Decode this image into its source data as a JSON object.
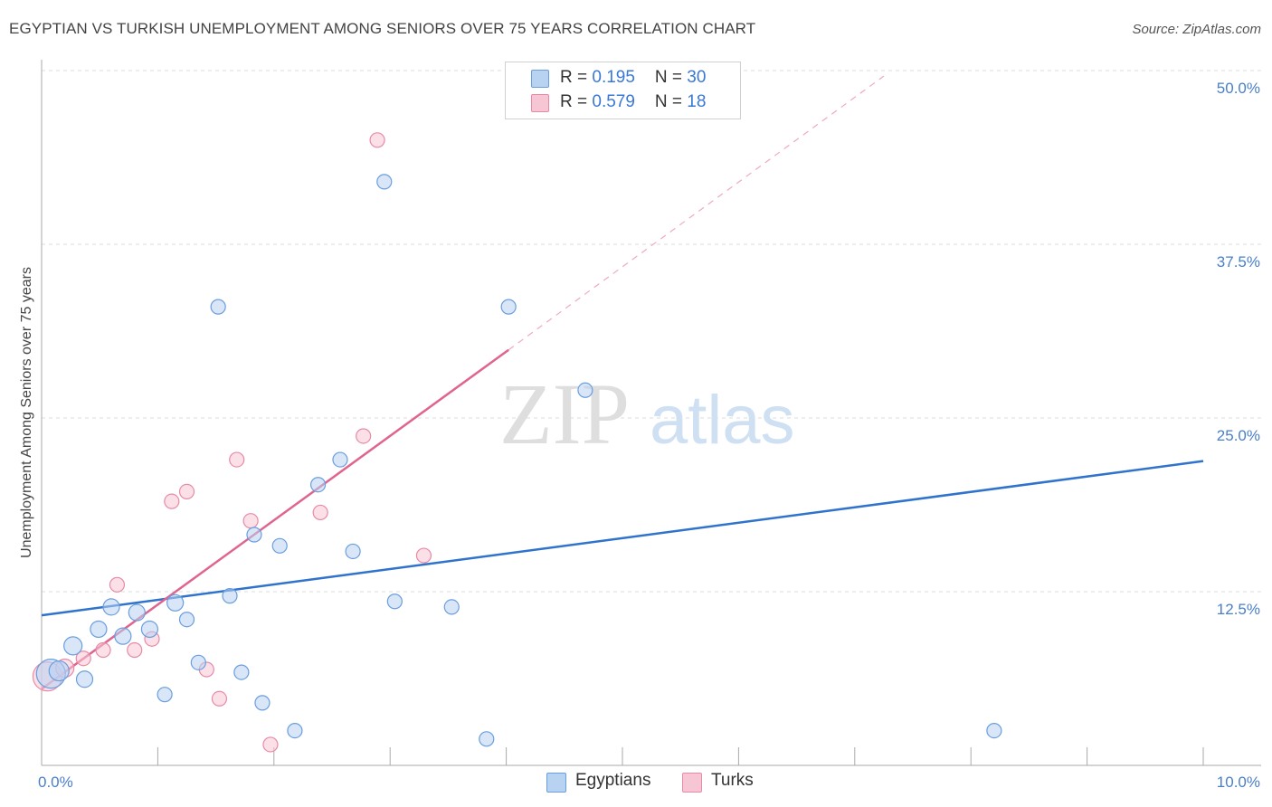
{
  "title": "EGYPTIAN VS TURKISH UNEMPLOYMENT AMONG SENIORS OVER 75 YEARS CORRELATION CHART",
  "source": "Source: ZipAtlas.com",
  "watermark": {
    "zip": "ZIP",
    "atlas": "atlas"
  },
  "legend": {
    "rows": [
      {
        "r_label": "R = ",
        "r_value": "0.195",
        "n_label": "N = ",
        "n_value": "30"
      },
      {
        "r_label": "R = ",
        "r_value": "0.579",
        "n_label": "N = ",
        "n_value": "18"
      }
    ]
  },
  "colors": {
    "egyptians_fill": "#b8d2f2",
    "egyptians_stroke": "#6a9ede",
    "egyptians_line": "#2f73cc",
    "turks_fill": "#f7c6d4",
    "turks_stroke": "#e88aa6",
    "turks_line": "#e0648f",
    "grid": "#dddddd",
    "axis": "#aaaaaa",
    "tick_label": "#4a7fc9"
  },
  "chart_data": {
    "type": "scatter",
    "title": "EGYPTIAN VS TURKISH UNEMPLOYMENT AMONG SENIORS OVER 75 YEARS CORRELATION CHART",
    "xlabel": "",
    "ylabel": "Unemployment Among Seniors over 75 years",
    "xlim": [
      0,
      10
    ],
    "ylim": [
      0,
      50
    ],
    "x_ticks": [
      0,
      1,
      2,
      3,
      4,
      5,
      6,
      7,
      8,
      9,
      10
    ],
    "x_tick_labels": [
      {
        "value": 0,
        "label": "0.0%"
      },
      {
        "value": 10,
        "label": "10.0%"
      }
    ],
    "y_ticks": [
      12.5,
      25.0,
      37.5,
      50.0
    ],
    "y_tick_labels": [
      "12.5%",
      "25.0%",
      "37.5%",
      "50.0%"
    ],
    "grid": true,
    "legend_position": "top-center",
    "series": [
      {
        "name": "Egyptians",
        "r": 0.195,
        "n": 30,
        "trend": {
          "x": [
            0,
            10
          ],
          "y": [
            10.8,
            21.9
          ]
        },
        "points": [
          {
            "x": 0.08,
            "y": 6.6,
            "s": 16
          },
          {
            "x": 0.15,
            "y": 6.8,
            "s": 11
          },
          {
            "x": 0.27,
            "y": 8.6,
            "s": 10
          },
          {
            "x": 0.37,
            "y": 6.2,
            "s": 9
          },
          {
            "x": 0.49,
            "y": 9.8,
            "s": 9
          },
          {
            "x": 0.6,
            "y": 11.4,
            "s": 9
          },
          {
            "x": 0.7,
            "y": 9.3,
            "s": 9
          },
          {
            "x": 0.82,
            "y": 11.0,
            "s": 9
          },
          {
            "x": 0.93,
            "y": 9.8,
            "s": 9
          },
          {
            "x": 1.06,
            "y": 5.1,
            "s": 8
          },
          {
            "x": 1.15,
            "y": 11.7,
            "s": 9
          },
          {
            "x": 1.25,
            "y": 10.5,
            "s": 8
          },
          {
            "x": 1.35,
            "y": 7.4,
            "s": 8
          },
          {
            "x": 1.52,
            "y": 33.0,
            "s": 8
          },
          {
            "x": 1.62,
            "y": 12.2,
            "s": 8
          },
          {
            "x": 1.72,
            "y": 6.7,
            "s": 8
          },
          {
            "x": 1.83,
            "y": 16.6,
            "s": 8
          },
          {
            "x": 1.9,
            "y": 4.5,
            "s": 8
          },
          {
            "x": 2.05,
            "y": 15.8,
            "s": 8
          },
          {
            "x": 2.18,
            "y": 2.5,
            "s": 8
          },
          {
            "x": 2.38,
            "y": 20.2,
            "s": 8
          },
          {
            "x": 2.57,
            "y": 22.0,
            "s": 8
          },
          {
            "x": 2.68,
            "y": 15.4,
            "s": 8
          },
          {
            "x": 2.95,
            "y": 42.0,
            "s": 8
          },
          {
            "x": 3.04,
            "y": 11.8,
            "s": 8
          },
          {
            "x": 3.53,
            "y": 11.4,
            "s": 8
          },
          {
            "x": 3.83,
            "y": 1.9,
            "s": 8
          },
          {
            "x": 4.02,
            "y": 33.0,
            "s": 8
          },
          {
            "x": 4.68,
            "y": 27.0,
            "s": 8
          },
          {
            "x": 8.2,
            "y": 2.5,
            "s": 8
          }
        ]
      },
      {
        "name": "Turks",
        "r": 0.579,
        "n": 18,
        "trend": {
          "x": [
            0,
            4.02
          ],
          "y": [
            5.5,
            29.9
          ]
        },
        "trend_dashed": {
          "x": [
            4.02,
            7.25
          ],
          "y": [
            29.9,
            49.6
          ]
        },
        "points": [
          {
            "x": 0.05,
            "y": 6.4,
            "s": 16
          },
          {
            "x": 0.2,
            "y": 7.0,
            "s": 10
          },
          {
            "x": 0.36,
            "y": 7.7,
            "s": 8
          },
          {
            "x": 0.53,
            "y": 8.3,
            "s": 8
          },
          {
            "x": 0.65,
            "y": 13.0,
            "s": 8
          },
          {
            "x": 0.8,
            "y": 8.3,
            "s": 8
          },
          {
            "x": 0.95,
            "y": 9.1,
            "s": 8
          },
          {
            "x": 1.12,
            "y": 19.0,
            "s": 8
          },
          {
            "x": 1.25,
            "y": 19.7,
            "s": 8
          },
          {
            "x": 1.42,
            "y": 6.9,
            "s": 8
          },
          {
            "x": 1.53,
            "y": 4.8,
            "s": 8
          },
          {
            "x": 1.68,
            "y": 22.0,
            "s": 8
          },
          {
            "x": 1.8,
            "y": 17.6,
            "s": 8
          },
          {
            "x": 1.97,
            "y": 1.5,
            "s": 8
          },
          {
            "x": 2.4,
            "y": 18.2,
            "s": 8
          },
          {
            "x": 2.77,
            "y": 23.7,
            "s": 8
          },
          {
            "x": 2.89,
            "y": 45.0,
            "s": 8
          },
          {
            "x": 3.29,
            "y": 15.1,
            "s": 8
          }
        ]
      }
    ]
  }
}
